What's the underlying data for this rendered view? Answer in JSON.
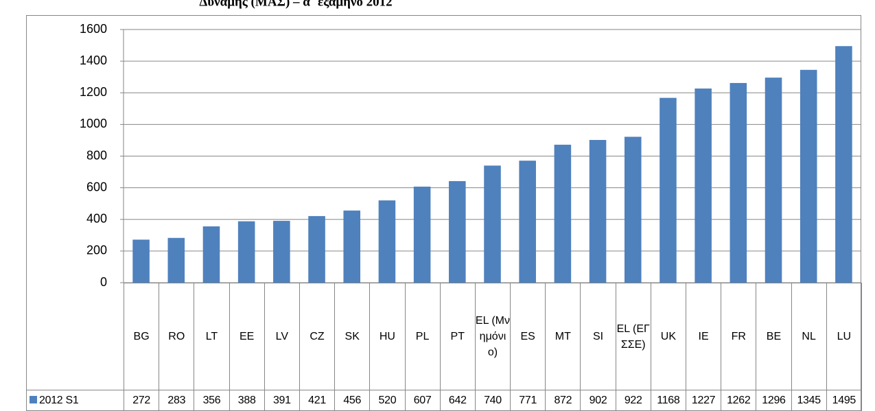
{
  "chart_data": {
    "type": "bar",
    "title": "Δύναμης (ΜΑΣ) – α΄ εξάμηνο 2012",
    "categories": [
      "BG",
      "RO",
      "LT",
      "EE",
      "LV",
      "CZ",
      "SK",
      "HU",
      "PL",
      "PT",
      "EL (Μνημόνιο)",
      "ES",
      "MT",
      "SI",
      "EL (ΕΓΣΣΕ)",
      "UK",
      "IE",
      "FR",
      "BE",
      "NL",
      "LU"
    ],
    "series": [
      {
        "name": "2012 S1",
        "color": "#4f81bd",
        "values": [
          272,
          283,
          356,
          388,
          391,
          421,
          456,
          520,
          607,
          642,
          740,
          771,
          872,
          902,
          922,
          1168,
          1227,
          1262,
          1296,
          1345,
          1495
        ]
      }
    ],
    "ylim": [
      0,
      1600
    ],
    "yticks": [
      0,
      200,
      400,
      600,
      800,
      1000,
      1200,
      1400,
      1600
    ],
    "grid": true
  }
}
